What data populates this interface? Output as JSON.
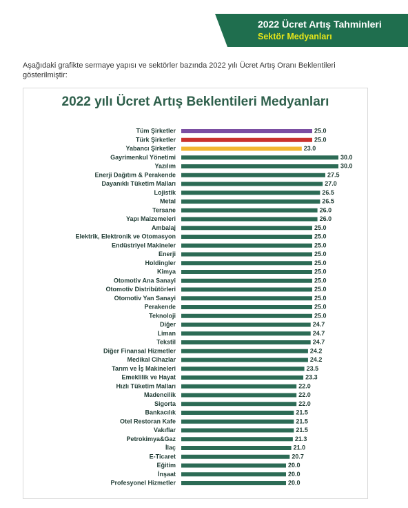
{
  "banner": {
    "title": "2022 Ücret Artış Tahminleri",
    "subtitle": "Sektör Medyanları",
    "color": "#1f6e4e"
  },
  "intro_text": "Aşağıdaki grafikte sermaye yapısı ve sektörler bazında 2022 yılı Ücret Artış Oranı Beklentileri gösterilmiştir:",
  "chart_data": {
    "type": "bar",
    "orientation": "horizontal",
    "title": "2022 yılı Ücret Artış Beklentileri Medyanları",
    "xlim": [
      0,
      30
    ],
    "grid": false,
    "legend": "none",
    "colors": {
      "default": "#2c6b55",
      "Tüm Şirketler": "#7b4ea2",
      "Türk Şirketler": "#c9312d",
      "Yabancı Şirketler": "#f2b630"
    },
    "categories": [
      "Tüm Şirketler",
      "Türk Şirketler",
      "Yabancı Şirketler",
      "Gayrimenkul Yönetimi",
      "Yazılım",
      "Enerji Dağıtım & Perakende",
      "Dayanıklı Tüketim Malları",
      "Lojistik",
      "Metal",
      "Tersane",
      "Yapı Malzemeleri",
      "Ambalaj",
      "Elektrik, Elektronik ve Otomasyon",
      "Endüstriyel Makineler",
      "Enerji",
      "Holdingler",
      "Kimya",
      "Otomotiv Ana Sanayi",
      "Otomotiv Distribütörleri",
      "Otomotiv Yan Sanayi",
      "Perakende",
      "Teknoloji",
      "Diğer",
      "Liman",
      "Tekstil",
      "Diğer Finansal Hizmetler",
      "Medikal Cihazlar",
      "Tarım ve İş Makineleri",
      "Emeklilik ve Hayat",
      "Hızlı Tüketim Malları",
      "Madencilik",
      "Sigorta",
      "Bankacılık",
      "Otel Restoran Kafe",
      "Vakıflar",
      "Petrokimya&Gaz",
      "İlaç",
      "E-Ticaret",
      "Eğitim",
      "İnşaat",
      "Profesyonel Hizmetler"
    ],
    "values": [
      25.0,
      25.0,
      23.0,
      30.0,
      30.0,
      27.5,
      27.0,
      26.5,
      26.5,
      26.0,
      26.0,
      25.0,
      25.0,
      25.0,
      25.0,
      25.0,
      25.0,
      25.0,
      25.0,
      25.0,
      25.0,
      25.0,
      24.7,
      24.7,
      24.7,
      24.2,
      24.2,
      23.5,
      23.3,
      22.0,
      22.0,
      22.0,
      21.5,
      21.5,
      21.5,
      21.3,
      21.0,
      20.7,
      20.0,
      20.0,
      20.0
    ],
    "value_labels": [
      "25.0",
      "25.0",
      "23.0",
      "30.0",
      "30.0",
      "27.5",
      "27.0",
      "26.5",
      "26.5",
      "26.0",
      "26.0",
      "25.0",
      "25.0",
      "25.0",
      "25.0",
      "25.0",
      "25.0",
      "25.0",
      "25.0",
      "25.0",
      "25.0",
      "25.0",
      "24.7",
      "24.7",
      "24.7",
      "24.2",
      "24.2",
      "23.5",
      "23.3",
      "22.0",
      "22.0",
      "22.0",
      "21.5",
      "21.5",
      "21.5",
      "21.3",
      "21.0",
      "20.7",
      "20.0",
      "20.0",
      "20.0"
    ]
  }
}
